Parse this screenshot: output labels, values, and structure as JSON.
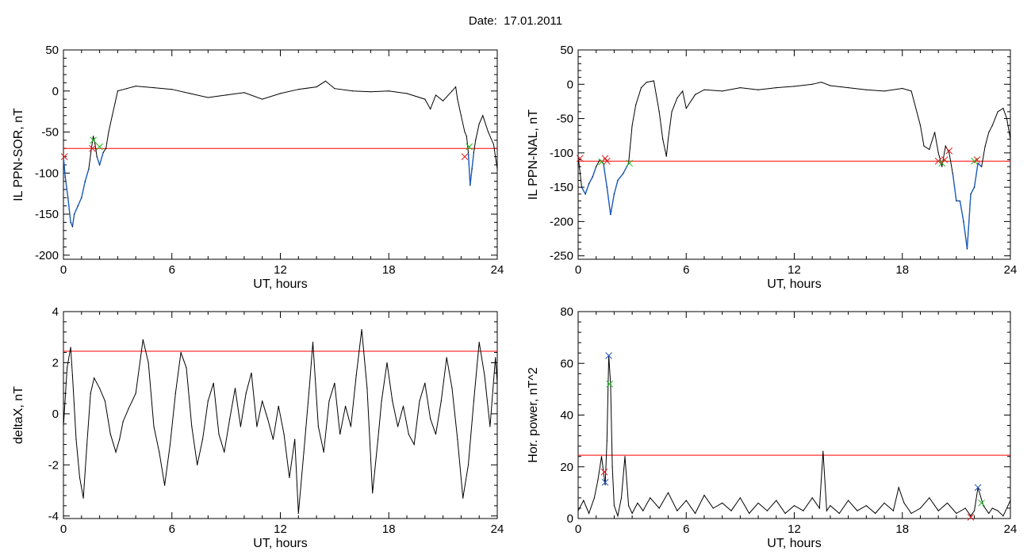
{
  "page": {
    "date_label": "Date:",
    "date_value": "17.01.2011"
  },
  "colors": {
    "background": "#ffffff",
    "signal": "#000000",
    "below_threshold_signal": "#1f5fbf",
    "threshold_line": "#ff0000",
    "marker_red": "#dd2222",
    "marker_green": "#22bb22",
    "marker_blue": "#2255cc"
  },
  "chart_data": [
    {
      "id": "ppn-sor",
      "type": "line",
      "ylabel": "IL PPN-SOR, nT",
      "xlabel": "UT, hours",
      "xlim": [
        0,
        24
      ],
      "ylim": [
        -205,
        50
      ],
      "xticks": [
        0,
        6,
        12,
        18,
        24
      ],
      "yticks": [
        -200,
        -150,
        -100,
        -50,
        0,
        50
      ],
      "threshold": -70,
      "series": [
        {
          "x": [
            0,
            0.1,
            0.25,
            0.4,
            0.5,
            0.6,
            0.8,
            1.0,
            1.2,
            1.4,
            1.55,
            1.65,
            1.75,
            1.85,
            2.0,
            2.2,
            2.35,
            2.5,
            2.7,
            2.85,
            3.0,
            3.5,
            4.0,
            5.0,
            6.0,
            7.0,
            8.0,
            9.0,
            10.0,
            11.0,
            12.0,
            13.0,
            14.0,
            14.5,
            15.0,
            16.0,
            17.0,
            18.0,
            19.0,
            20.0,
            20.3,
            20.6,
            21.0,
            21.5,
            21.7,
            21.8,
            22.0,
            22.2,
            22.3,
            22.4,
            22.5,
            22.6,
            22.7,
            22.8,
            23.0,
            23.2,
            23.5,
            23.8,
            24.0
          ],
          "y": [
            -80,
            -105,
            -130,
            -160,
            -165,
            -150,
            -140,
            -130,
            -110,
            -95,
            -70,
            -55,
            -65,
            -80,
            -90,
            -75,
            -70,
            -50,
            -30,
            -15,
            0,
            3,
            6,
            4,
            2,
            -3,
            -8,
            -5,
            -2,
            -10,
            -3,
            2,
            5,
            12,
            3,
            0,
            -1,
            0,
            -3,
            -10,
            -22,
            -5,
            -12,
            0,
            5,
            -10,
            -30,
            -50,
            -55,
            -75,
            -115,
            -95,
            -75,
            -60,
            -40,
            -30,
            -50,
            -65,
            -95
          ]
        }
      ],
      "markers": [
        {
          "x": 0.05,
          "y": -80,
          "color": "marker_red"
        },
        {
          "x": 1.6,
          "y": -70,
          "color": "marker_red"
        },
        {
          "x": 1.65,
          "y": -60,
          "color": "marker_green"
        },
        {
          "x": 2.0,
          "y": -68,
          "color": "marker_green"
        },
        {
          "x": 22.2,
          "y": -80,
          "color": "marker_red"
        },
        {
          "x": 22.45,
          "y": -68,
          "color": "marker_green"
        }
      ]
    },
    {
      "id": "ppn-nal",
      "type": "line",
      "ylabel": "IL PPN-NAL, nT",
      "xlabel": "UT, hours",
      "xlim": [
        0,
        24
      ],
      "ylim": [
        -255,
        50
      ],
      "xticks": [
        0,
        6,
        12,
        18,
        24
      ],
      "yticks": [
        -250,
        -200,
        -150,
        -100,
        -50,
        0,
        50
      ],
      "threshold": -112,
      "series": [
        {
          "x": [
            0,
            0.2,
            0.4,
            0.6,
            0.8,
            1.0,
            1.2,
            1.4,
            1.6,
            1.8,
            2.0,
            2.2,
            2.5,
            2.8,
            3.0,
            3.2,
            3.5,
            3.8,
            4.2,
            4.5,
            4.7,
            4.9,
            5.0,
            5.2,
            5.5,
            5.8,
            6.0,
            6.5,
            7.0,
            8.0,
            9.0,
            10.0,
            11.0,
            12.0,
            13.0,
            13.5,
            14.0,
            15.0,
            16.0,
            17.0,
            18.0,
            18.5,
            19.0,
            19.2,
            19.5,
            19.8,
            20.0,
            20.2,
            20.4,
            20.6,
            20.8,
            21.0,
            21.2,
            21.4,
            21.6,
            21.8,
            22.0,
            22.2,
            22.4,
            22.6,
            22.8,
            23.0,
            23.3,
            23.6,
            23.8,
            24.0
          ],
          "y": [
            -105,
            -150,
            -160,
            -145,
            -135,
            -120,
            -110,
            -115,
            -150,
            -190,
            -160,
            -140,
            -130,
            -115,
            -60,
            -30,
            -5,
            3,
            5,
            -40,
            -80,
            -105,
            -80,
            -40,
            -20,
            -10,
            -35,
            -15,
            -8,
            -10,
            -5,
            -8,
            -5,
            -3,
            0,
            3,
            -2,
            -5,
            -8,
            -10,
            -6,
            -10,
            -60,
            -90,
            -95,
            -70,
            -100,
            -120,
            -90,
            -100,
            -130,
            -170,
            -170,
            -200,
            -240,
            -160,
            -150,
            -115,
            -120,
            -90,
            -70,
            -60,
            -40,
            -35,
            -50,
            -80
          ]
        }
      ],
      "markers": [
        {
          "x": 0.1,
          "y": -108,
          "color": "marker_red"
        },
        {
          "x": 1.3,
          "y": -113,
          "color": "marker_green"
        },
        {
          "x": 1.5,
          "y": -108,
          "color": "marker_red"
        },
        {
          "x": 1.6,
          "y": -112,
          "color": "marker_red"
        },
        {
          "x": 2.85,
          "y": -115,
          "color": "marker_green"
        },
        {
          "x": 20.0,
          "y": -112,
          "color": "marker_red"
        },
        {
          "x": 20.2,
          "y": -115,
          "color": "marker_green"
        },
        {
          "x": 20.35,
          "y": -110,
          "color": "marker_red"
        },
        {
          "x": 20.6,
          "y": -97,
          "color": "marker_red"
        },
        {
          "x": 22.0,
          "y": -112,
          "color": "marker_green"
        },
        {
          "x": 22.15,
          "y": -110,
          "color": "marker_red"
        }
      ]
    },
    {
      "id": "deltax",
      "type": "line",
      "ylabel": "deltaX, nT",
      "xlabel": "UT, hours",
      "xlim": [
        0,
        24
      ],
      "ylim": [
        -4.1,
        4
      ],
      "xticks": [
        0,
        6,
        12,
        18,
        24
      ],
      "yticks": [
        -4,
        -2,
        0,
        2,
        4
      ],
      "threshold": 2.45,
      "series": [
        {
          "x": [
            0,
            0.2,
            0.4,
            0.5,
            0.7,
            0.9,
            1.1,
            1.3,
            1.5,
            1.7,
            2.0,
            2.3,
            2.6,
            2.9,
            3.1,
            3.3,
            3.6,
            4.0,
            4.4,
            4.7,
            5.0,
            5.3,
            5.6,
            5.9,
            6.2,
            6.5,
            6.8,
            7.1,
            7.4,
            7.7,
            8.0,
            8.3,
            8.6,
            8.9,
            9.2,
            9.5,
            9.8,
            10.1,
            10.4,
            10.7,
            11.0,
            11.3,
            11.6,
            11.9,
            12.2,
            12.5,
            12.8,
            13.0,
            13.3,
            13.6,
            13.8,
            14.1,
            14.4,
            14.7,
            15.0,
            15.3,
            15.6,
            15.9,
            16.2,
            16.5,
            16.8,
            17.1,
            17.4,
            17.6,
            17.9,
            18.2,
            18.5,
            18.8,
            19.1,
            19.4,
            19.7,
            20.0,
            20.3,
            20.6,
            20.9,
            21.2,
            21.5,
            21.8,
            22.1,
            22.4,
            22.7,
            23.0,
            23.3,
            23.6,
            23.9,
            24.0
          ],
          "y": [
            -0.5,
            1.8,
            2.6,
            1.5,
            -1.0,
            -2.5,
            -3.3,
            -1.2,
            0.8,
            1.4,
            1.0,
            0.5,
            -0.8,
            -1.5,
            -1.0,
            -0.3,
            0.2,
            0.8,
            2.9,
            2.0,
            -0.5,
            -1.5,
            -2.8,
            -1.2,
            0.8,
            2.4,
            1.8,
            -0.5,
            -2.0,
            -1.0,
            0.5,
            1.2,
            -0.8,
            -1.5,
            -0.2,
            1.0,
            -0.5,
            0.8,
            1.6,
            -0.5,
            0.5,
            -0.2,
            -1.0,
            0.3,
            -0.8,
            -2.5,
            -1.0,
            -3.9,
            -1.5,
            1.0,
            2.8,
            -0.5,
            -1.5,
            0.5,
            1.2,
            -0.8,
            0.3,
            -0.5,
            1.5,
            3.3,
            1.0,
            -3.1,
            -1.0,
            0.5,
            2.0,
            0.5,
            -0.5,
            0.3,
            -0.8,
            -1.2,
            0.5,
            1.2,
            -0.2,
            -0.8,
            0.5,
            2.2,
            1.0,
            -1.0,
            -3.3,
            -2.0,
            0.5,
            2.8,
            1.5,
            -0.5,
            2.2,
            1.2
          ]
        }
      ]
    },
    {
      "id": "hor-power",
      "type": "line",
      "ylabel": "Hor. power, nT^2",
      "xlabel": "UT, hours",
      "xlim": [
        0,
        24
      ],
      "ylim": [
        0,
        80
      ],
      "xticks": [
        0,
        6,
        12,
        18,
        24
      ],
      "yticks": [
        0,
        20,
        40,
        60,
        80
      ],
      "threshold": 24.5,
      "series": [
        {
          "x": [
            0,
            0.3,
            0.6,
            0.9,
            1.1,
            1.3,
            1.5,
            1.6,
            1.7,
            1.8,
            1.9,
            2.0,
            2.2,
            2.4,
            2.6,
            2.8,
            3.0,
            3.3,
            3.6,
            4.0,
            4.5,
            5.0,
            5.5,
            6.0,
            6.5,
            7.0,
            7.5,
            8.0,
            8.5,
            9.0,
            9.5,
            10.0,
            10.5,
            11.0,
            11.5,
            12.0,
            12.5,
            13.0,
            13.4,
            13.6,
            13.8,
            14.0,
            14.5,
            15.0,
            15.5,
            16.0,
            16.5,
            17.0,
            17.5,
            17.8,
            18.1,
            18.5,
            19.0,
            19.5,
            20.0,
            20.5,
            21.0,
            21.5,
            21.8,
            22.0,
            22.2,
            22.5,
            22.8,
            23.0,
            23.3,
            23.6,
            24.0
          ],
          "y": [
            3,
            7,
            2,
            8,
            15,
            24,
            13,
            30,
            63,
            52,
            20,
            5,
            1,
            8,
            24,
            5,
            2,
            6,
            3,
            8,
            4,
            10,
            3,
            7,
            2,
            9,
            4,
            6,
            3,
            8,
            2,
            6,
            3,
            7,
            2,
            5,
            3,
            8,
            4,
            26,
            3,
            5,
            2,
            7,
            3,
            5,
            2,
            6,
            3,
            12,
            6,
            2,
            4,
            8,
            3,
            6,
            2,
            4,
            1,
            3,
            12,
            5,
            2,
            4,
            3,
            1,
            7
          ]
        }
      ],
      "markers": [
        {
          "x": 1.45,
          "y": 18,
          "color": "marker_red"
        },
        {
          "x": 1.5,
          "y": 14,
          "color": "marker_blue"
        },
        {
          "x": 1.7,
          "y": 63,
          "color": "marker_blue"
        },
        {
          "x": 1.75,
          "y": 52,
          "color": "marker_green"
        },
        {
          "x": 21.8,
          "y": 0.5,
          "color": "marker_red"
        },
        {
          "x": 22.2,
          "y": 12,
          "color": "marker_blue"
        },
        {
          "x": 22.4,
          "y": 6,
          "color": "marker_green"
        }
      ]
    }
  ]
}
